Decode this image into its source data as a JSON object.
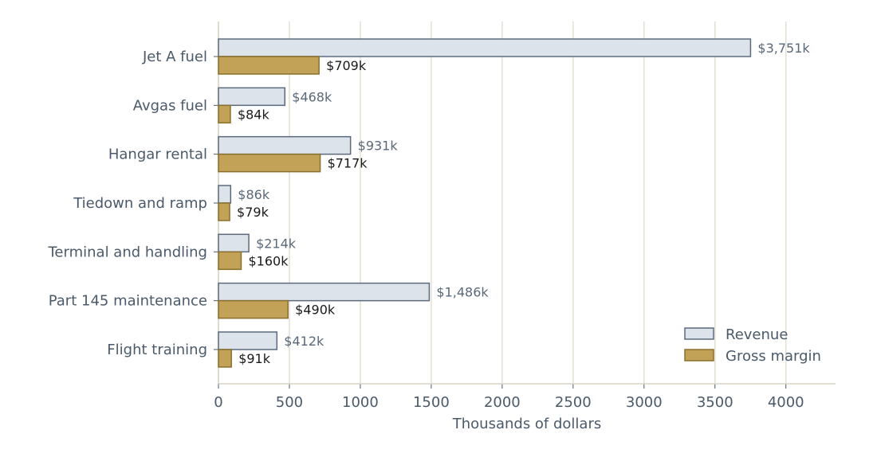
{
  "chart_data": {
    "type": "bar",
    "orientation": "horizontal",
    "categories": [
      "Jet A fuel",
      "Avgas fuel",
      "Hangar rental",
      "Tiedown and ramp",
      "Terminal and handling",
      "Part 145 maintenance",
      "Flight training"
    ],
    "series": [
      {
        "name": "Revenue",
        "values": [
          3751,
          468,
          931,
          86,
          214,
          1486,
          412
        ],
        "labels": [
          "$3,751k",
          "$468k",
          "$931k",
          "$86k",
          "$214k",
          "$1,486k",
          "$412k"
        ],
        "color": "#dde3ea",
        "edge_color": "#5b6b7d"
      },
      {
        "name": "Gross margin",
        "values": [
          709,
          84,
          717,
          79,
          160,
          490,
          91
        ],
        "labels": [
          "$709k",
          "$84k",
          "$717k",
          "$79k",
          "$160k",
          "$490k",
          "$91k"
        ],
        "color": "#c1a257",
        "edge_color": "#8a6f2c"
      }
    ],
    "title": "",
    "xlabel": "Thousands of dollars",
    "ylabel": "",
    "xlim": [
      0,
      4350
    ],
    "xticks": [
      0,
      500,
      1000,
      1500,
      2000,
      2500,
      3000,
      3500,
      4000
    ],
    "xtick_labels": [
      "0",
      "500",
      "1000",
      "1500",
      "2000",
      "2500",
      "3000",
      "3500",
      "4000"
    ],
    "grid": "vertical",
    "legend_position": "lower-right"
  },
  "colors": {
    "grid": "#e3e0d2",
    "axis": "#d8d4c4",
    "text": "#4a5a6a"
  }
}
